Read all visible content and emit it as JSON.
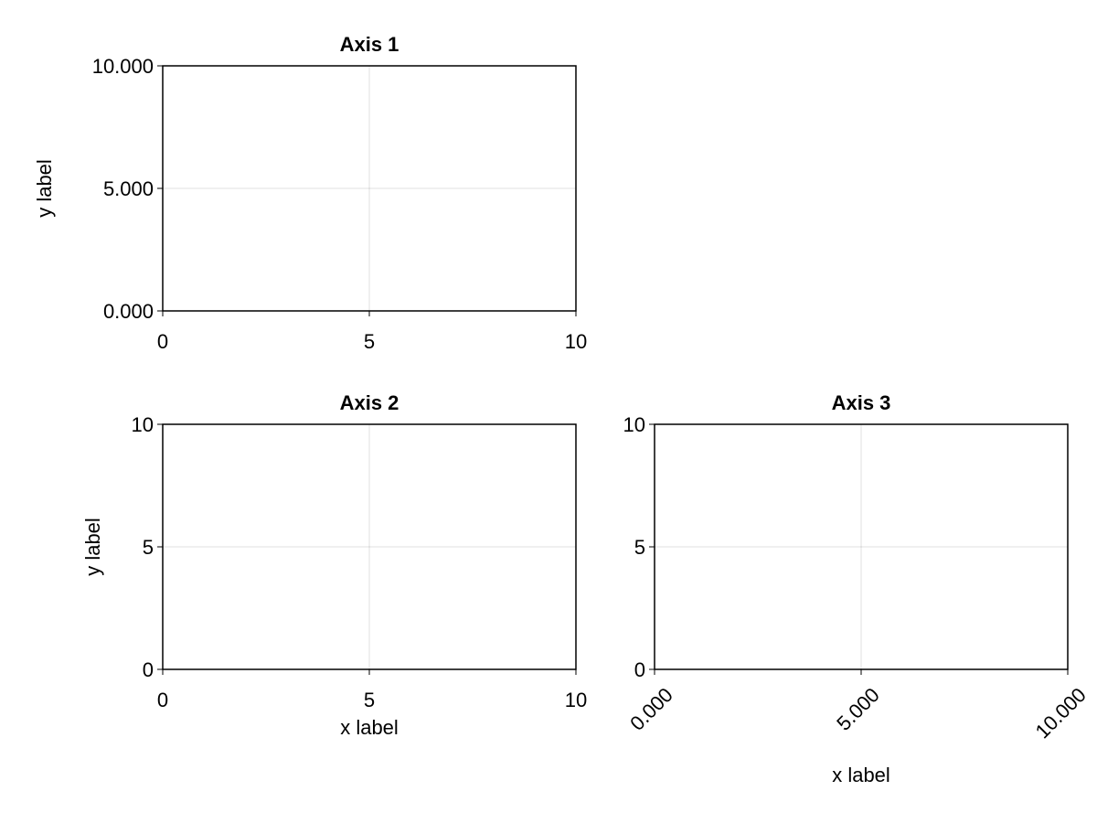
{
  "chart_data": [
    {
      "type": "line",
      "title": "Axis 1",
      "ylabel": "y label",
      "xlim": [
        0,
        10
      ],
      "ylim": [
        0,
        10
      ],
      "xticks": [
        0,
        5,
        10
      ],
      "yticks": [
        {
          "value": 0,
          "label": "0.000"
        },
        {
          "value": 5,
          "label": "5.000"
        },
        {
          "value": 10,
          "label": "10.000"
        }
      ],
      "grid": true
    },
    {
      "type": "line",
      "title": "Axis 2",
      "xlabel": "x label",
      "ylabel": "y label",
      "xlim": [
        0,
        10
      ],
      "ylim": [
        0,
        10
      ],
      "xticks": [
        0,
        5,
        10
      ],
      "yticks": [
        0,
        5,
        10
      ],
      "grid": true
    },
    {
      "type": "line",
      "title": "Axis 3",
      "xlabel": "x label",
      "xlim": [
        0,
        10
      ],
      "ylim": [
        0,
        10
      ],
      "xticks": [
        {
          "value": 0,
          "label": "0.000"
        },
        {
          "value": 5,
          "label": "5.000"
        },
        {
          "value": 10,
          "label": "10.000"
        }
      ],
      "yticks": [
        0,
        5,
        10
      ],
      "grid": true
    }
  ]
}
